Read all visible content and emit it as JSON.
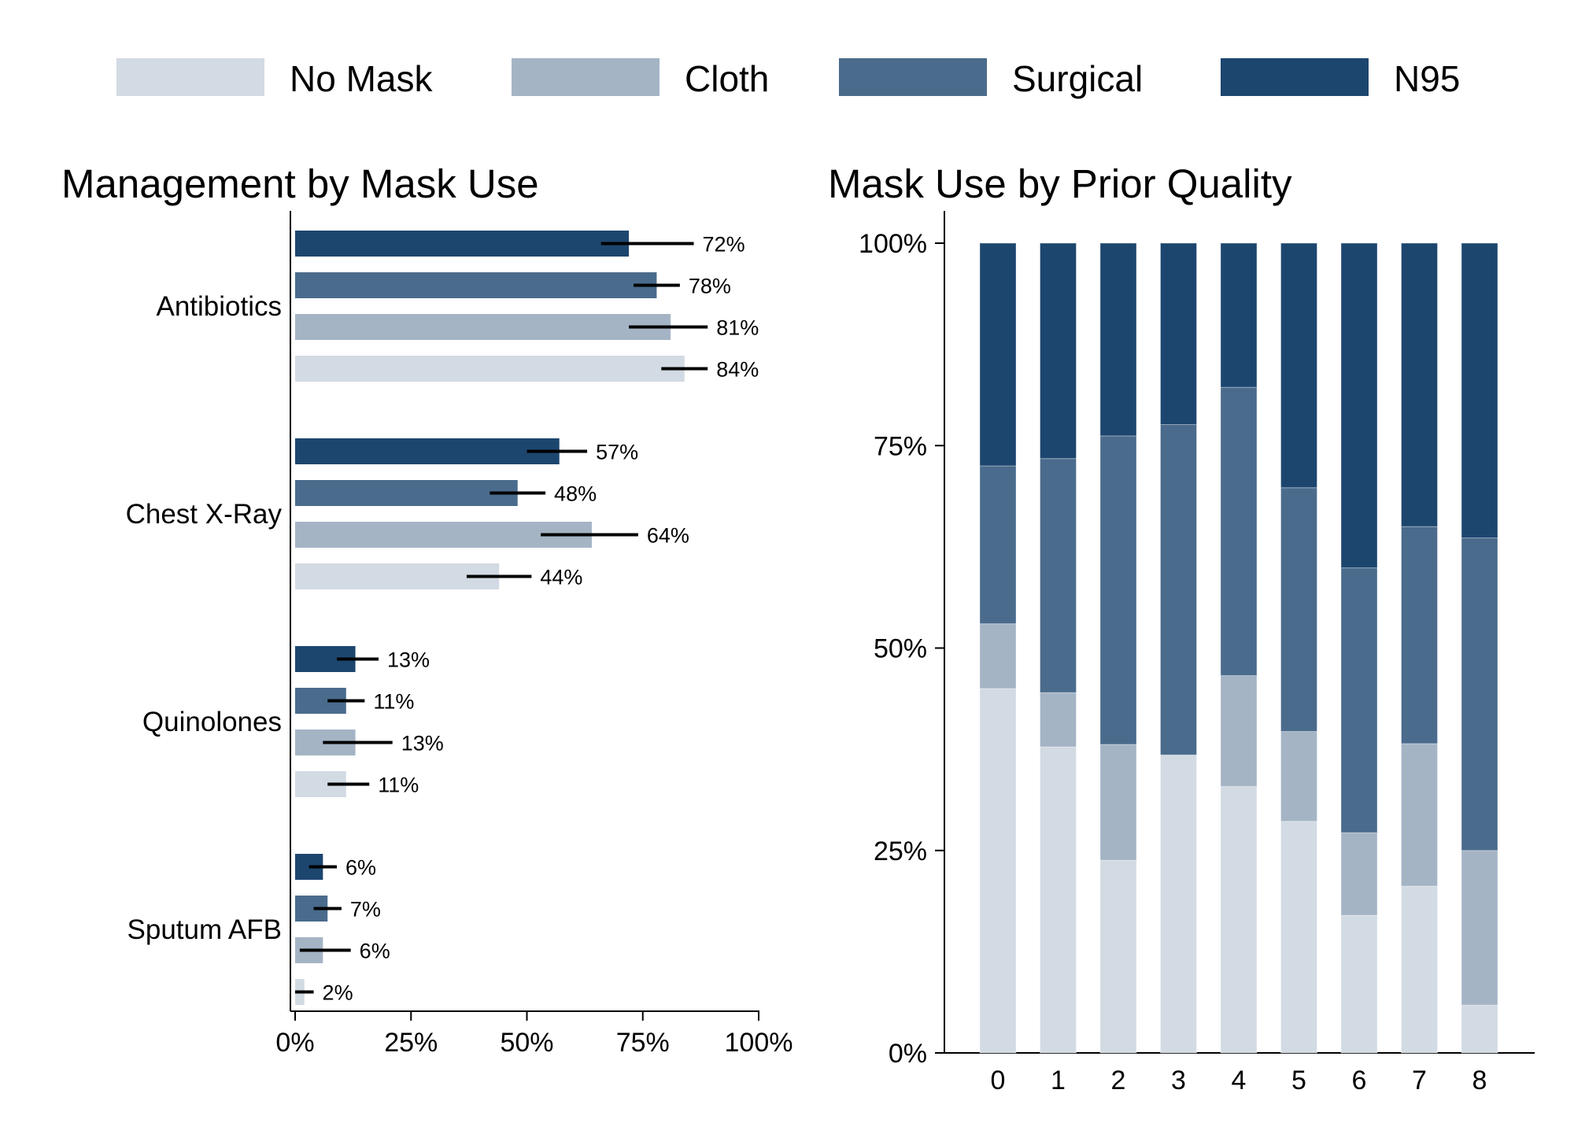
{
  "legend": {
    "items": [
      {
        "label": "No Mask",
        "color": "#d2dae3"
      },
      {
        "label": "Cloth",
        "color": "#a4b4c5"
      },
      {
        "label": "Surgical",
        "color": "#4a6b8c"
      },
      {
        "label": "N95",
        "color": "#1d466f"
      }
    ]
  },
  "chart_data": [
    {
      "type": "bar",
      "orientation": "horizontal",
      "title": "Management by Mask Use",
      "categories": [
        "Antibiotics",
        "Chest X-Ray",
        "Quinolones",
        "Sputum AFB"
      ],
      "xticks": [
        "0%",
        "25%",
        "50%",
        "75%",
        "100%"
      ],
      "xlim": [
        0,
        100
      ],
      "series": [
        {
          "name": "N95",
          "color": "#1d466f",
          "values": [
            72,
            57,
            13,
            6
          ],
          "ci": [
            [
              66,
              86
            ],
            [
              50,
              63
            ],
            [
              9,
              18
            ],
            [
              3,
              9
            ]
          ],
          "labels": [
            "72%",
            "57%",
            "13%",
            "6%"
          ]
        },
        {
          "name": "Surgical",
          "color": "#4a6b8c",
          "values": [
            78,
            48,
            11,
            7
          ],
          "ci": [
            [
              73,
              83
            ],
            [
              42,
              54
            ],
            [
              7,
              15
            ],
            [
              4,
              10
            ]
          ],
          "labels": [
            "78%",
            "48%",
            "11%",
            "7%"
          ]
        },
        {
          "name": "Cloth",
          "color": "#a4b4c5",
          "values": [
            81,
            64,
            13,
            6
          ],
          "ci": [
            [
              72,
              89
            ],
            [
              53,
              74
            ],
            [
              6,
              21
            ],
            [
              1,
              12
            ]
          ],
          "labels": [
            "81%",
            "64%",
            "13%",
            "6%"
          ]
        },
        {
          "name": "No Mask",
          "color": "#d2dae3",
          "values": [
            84,
            44,
            11,
            2
          ],
          "ci": [
            [
              79,
              89
            ],
            [
              37,
              51
            ],
            [
              7,
              16
            ],
            [
              0,
              4
            ]
          ],
          "labels": [
            "84%",
            "44%",
            "11%",
            "2%"
          ]
        }
      ]
    },
    {
      "type": "bar",
      "stacked": true,
      "title": "Mask Use by Prior Quality",
      "categories": [
        "0",
        "1",
        "2",
        "3",
        "4",
        "5",
        "6",
        "7",
        "8"
      ],
      "yticks": [
        "0%",
        "25%",
        "50%",
        "75%",
        "100%"
      ],
      "ylim": [
        0,
        100
      ],
      "series": [
        {
          "name": "No Mask",
          "color": "#d2dae3",
          "values": [
            45,
            37.8,
            23.8,
            36.8,
            32.9,
            28.6,
            17,
            20.6,
            5.9
          ]
        },
        {
          "name": "Cloth",
          "color": "#a4b4c5",
          "values": [
            8,
            6.7,
            14.3,
            0,
            13.7,
            11.1,
            10.2,
            17.6,
            19.1
          ]
        },
        {
          "name": "Surgical",
          "color": "#4a6b8c",
          "values": [
            19.5,
            28.9,
            38.1,
            40.8,
            35.6,
            30.1,
            32.7,
            26.8,
            38.6
          ]
        },
        {
          "name": "N95",
          "color": "#1d466f",
          "values": [
            27.5,
            26.6,
            23.8,
            22.4,
            17.8,
            30.2,
            40.1,
            35,
            36.4
          ]
        }
      ]
    }
  ]
}
